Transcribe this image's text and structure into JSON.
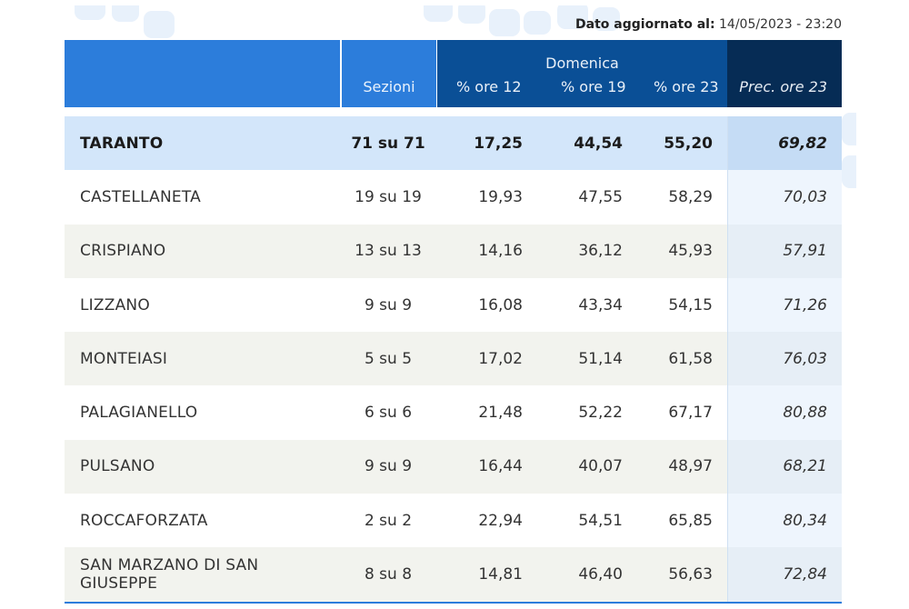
{
  "updated": {
    "label": "Dato aggiornato al:",
    "value": "14/05/2023 - 23:20"
  },
  "header": {
    "sezioni": "Sezioni",
    "domenica": "Domenica",
    "ore12": "% ore 12",
    "ore19": "% ore 19",
    "ore23": "% ore 23",
    "prec": "Prec. ore 23"
  },
  "rows": [
    {
      "name": "TARANTO",
      "sezioni": "71 su 71",
      "ore12": "17,25",
      "ore19": "44,54",
      "ore23": "55,20",
      "prec": "69,82"
    },
    {
      "name": "CASTELLANETA",
      "sezioni": "19 su 19",
      "ore12": "19,93",
      "ore19": "47,55",
      "ore23": "58,29",
      "prec": "70,03"
    },
    {
      "name": "CRISPIANO",
      "sezioni": "13 su 13",
      "ore12": "14,16",
      "ore19": "36,12",
      "ore23": "45,93",
      "prec": "57,91"
    },
    {
      "name": "LIZZANO",
      "sezioni": "9 su 9",
      "ore12": "16,08",
      "ore19": "43,34",
      "ore23": "54,15",
      "prec": "71,26"
    },
    {
      "name": "MONTEIASI",
      "sezioni": "5 su 5",
      "ore12": "17,02",
      "ore19": "51,14",
      "ore23": "61,58",
      "prec": "76,03"
    },
    {
      "name": "PALAGIANELLO",
      "sezioni": "6 su 6",
      "ore12": "21,48",
      "ore19": "52,22",
      "ore23": "67,17",
      "prec": "80,88"
    },
    {
      "name": "PULSANO",
      "sezioni": "9 su 9",
      "ore12": "16,44",
      "ore19": "40,07",
      "ore23": "48,97",
      "prec": "68,21"
    },
    {
      "name": "ROCCAFORZATA",
      "sezioni": "2 su 2",
      "ore12": "22,94",
      "ore19": "54,51",
      "ore23": "65,85",
      "prec": "80,34"
    },
    {
      "name": "SAN MARZANO DI SAN GIUSEPPE",
      "sezioni": "8 su 8",
      "ore12": "14,81",
      "ore19": "46,40",
      "ore23": "56,63",
      "prec": "72,84"
    }
  ],
  "colors": {
    "header_blue": "#2c7ddb",
    "header_dark": "#0a4f96",
    "header_navy": "#062c55",
    "highlight_row": "#d3e6fa",
    "alt_row": "#f2f3ee"
  }
}
